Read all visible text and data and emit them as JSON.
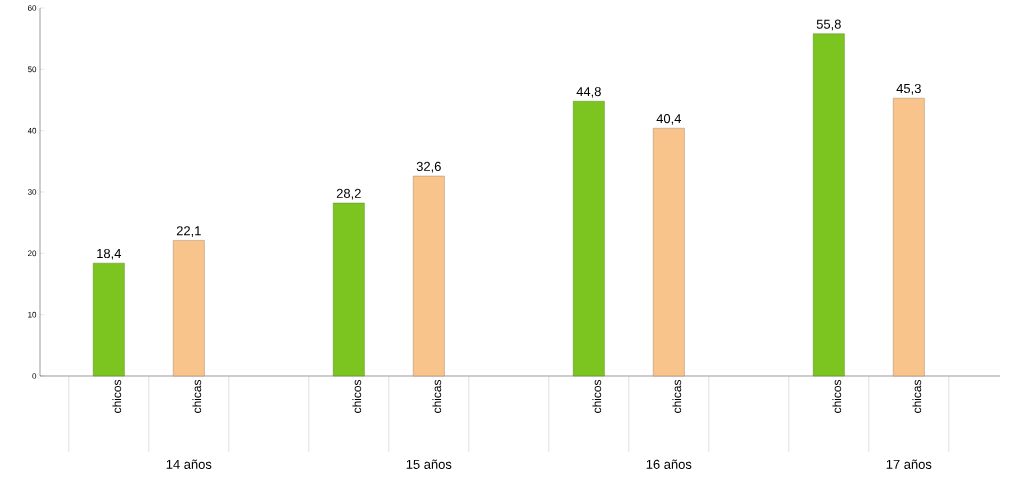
{
  "chart_data": {
    "type": "bar",
    "categories": [
      "14 años",
      "15 años",
      "16 años",
      "17 años"
    ],
    "series": [
      {
        "name": "chicos",
        "color": "#7cc520",
        "values": [
          18.4,
          28.2,
          44.8,
          55.8
        ],
        "value_labels": [
          "18,4",
          "28,2",
          "44,8",
          "55,8"
        ]
      },
      {
        "name": "chicas",
        "color": "#f9c38c",
        "values": [
          22.1,
          32.6,
          40.4,
          45.3
        ],
        "value_labels": [
          "22,1",
          "32,6",
          "40,4",
          "45,3"
        ]
      }
    ],
    "ylim": [
      0,
      60
    ],
    "yticks": [
      0,
      10,
      20,
      30,
      40,
      50,
      60
    ],
    "grid": false
  }
}
